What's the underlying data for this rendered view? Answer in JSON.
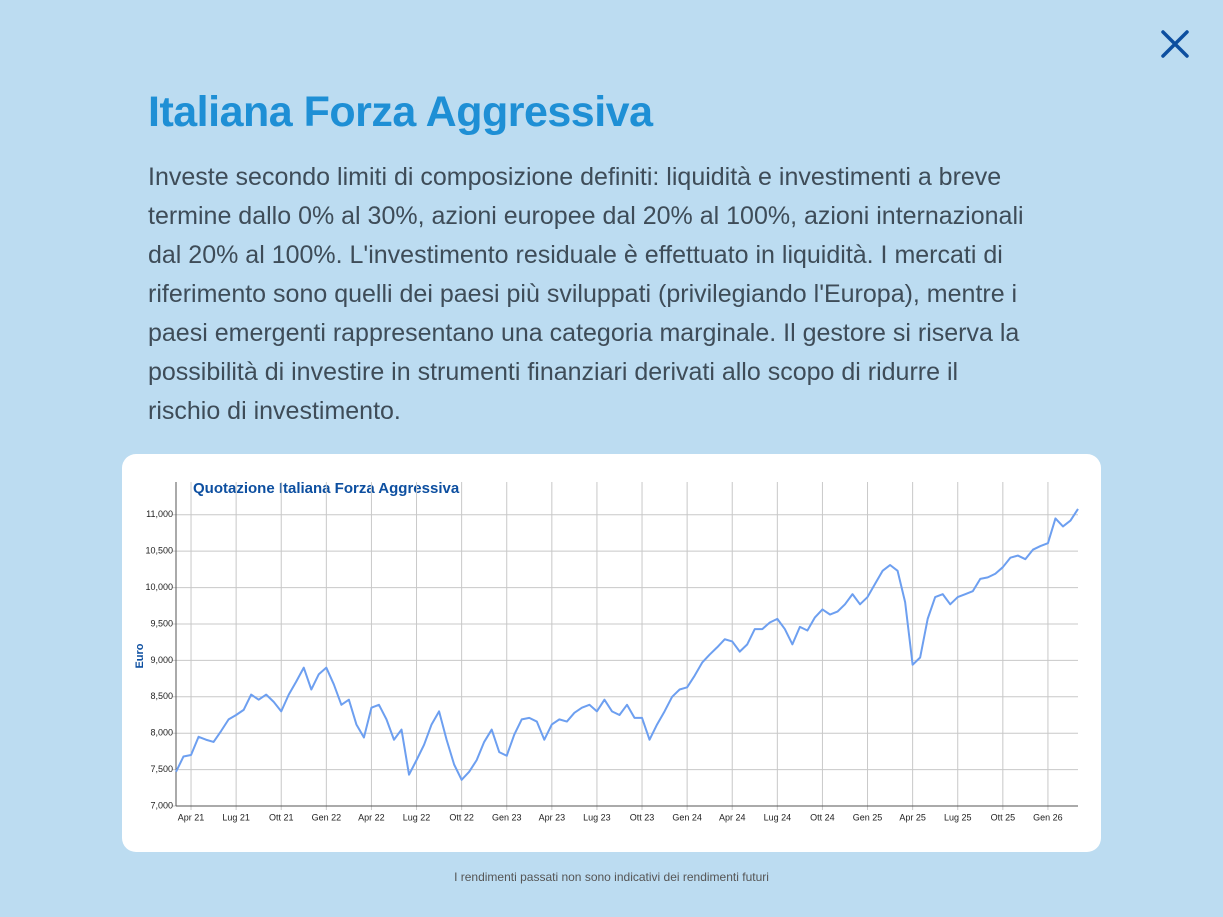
{
  "title": "Italiana Forza Aggressiva",
  "description": [
    "Investe secondo limiti di composizione definiti: liquidità e investimenti a breve",
    "termine dallo 0% al 30%, azioni europee dal 20% al 100%, azioni internazionali",
    "dal 20% al 100%. L'investimento residuale è effettuato in liquidità. I mercati di",
    "riferimento sono quelli dei paesi più sviluppati (privilegiando l'Europa), mentre i",
    "paesi emergenti rappresentano una categoria marginale. Il gestore si riserva la",
    "possibilità di investire in strumenti finanziari derivati allo scopo di ridurre il",
    "rischio di investimento."
  ],
  "disclaimer": "I rendimenti passati non sono indicativi dei rendimenti futuri",
  "chart_data": {
    "type": "line",
    "title": "Quotazione Italiana Forza Aggressiva",
    "y_label": "Euro",
    "color": "#6d9ff0",
    "grid": true,
    "categories": [
      null,
      null,
      "Apr 21",
      null,
      null,
      null,
      null,
      null,
      "Lug 21",
      null,
      null,
      null,
      null,
      null,
      "Ott 21",
      null,
      null,
      null,
      null,
      null,
      "Gen 22",
      null,
      null,
      null,
      null,
      null,
      "Apr 22",
      null,
      null,
      null,
      null,
      null,
      "Lug 22",
      null,
      null,
      null,
      null,
      null,
      "Ott 22",
      null,
      null,
      null,
      null,
      null,
      "Gen 23",
      null,
      null,
      null,
      null,
      null,
      "Apr 23",
      null,
      null,
      null,
      null,
      null,
      "Lug 23",
      null,
      null,
      null,
      null,
      null,
      "Ott 23",
      null,
      null,
      null,
      null,
      null,
      "Gen 24",
      null,
      null,
      null,
      null,
      null,
      "Apr 24",
      null,
      null,
      null,
      null,
      null,
      "Lug 24",
      null,
      null,
      null,
      null,
      null,
      "Ott 24",
      null,
      null,
      null,
      null,
      null,
      "Gen 25",
      null,
      null,
      null,
      null,
      null,
      "Apr 25",
      null,
      null,
      null,
      null,
      null,
      "Lug 25",
      null,
      null,
      null,
      null,
      null,
      "Ott 25",
      null,
      null,
      null,
      null,
      null,
      "Gen 26",
      null,
      null,
      null,
      null
    ],
    "values": [
      7470,
      7680,
      7700,
      7950,
      7910,
      7880,
      8030,
      8190,
      8250,
      8320,
      8530,
      8460,
      8530,
      8430,
      8300,
      8530,
      8710,
      8900,
      8600,
      8810,
      8900,
      8670,
      8390,
      8460,
      8120,
      7940,
      8350,
      8390,
      8190,
      7910,
      8050,
      7430,
      7630,
      7840,
      8120,
      8300,
      7910,
      7570,
      7360,
      7470,
      7630,
      7880,
      8050,
      7740,
      7690,
      7980,
      8190,
      8210,
      8160,
      7910,
      8120,
      8190,
      8160,
      8280,
      8350,
      8390,
      8300,
      8460,
      8300,
      8250,
      8390,
      8210,
      8210,
      7910,
      8120,
      8300,
      8500,
      8600,
      8630,
      8790,
      8970,
      9080,
      9180,
      9290,
      9260,
      9120,
      9220,
      9430,
      9430,
      9520,
      9570,
      9430,
      9220,
      9460,
      9410,
      9590,
      9700,
      9630,
      9670,
      9770,
      9910,
      9770,
      9870,
      10050,
      10230,
      10310,
      10230,
      9800,
      8940,
      9040,
      9570,
      9870,
      9910,
      9770,
      9870,
      9910,
      9950,
      10120,
      10140,
      10190,
      10280,
      10410,
      10440,
      10390,
      10520,
      10570,
      10610,
      10950,
      10840,
      10920,
      11080
    ],
    "ylim": [
      7000,
      11450
    ],
    "yticks": [
      {
        "value": 7000,
        "label": "7,000"
      },
      {
        "value": 7500,
        "label": "7,500"
      },
      {
        "value": 8000,
        "label": "8,000"
      },
      {
        "value": 8500,
        "label": "8,500"
      },
      {
        "value": 9000,
        "label": "9,000"
      },
      {
        "value": 9500,
        "label": "9,500"
      },
      {
        "value": 10000,
        "label": "10,000"
      },
      {
        "value": 10500,
        "label": "10,500"
      },
      {
        "value": 11000,
        "label": "11,000"
      }
    ]
  }
}
